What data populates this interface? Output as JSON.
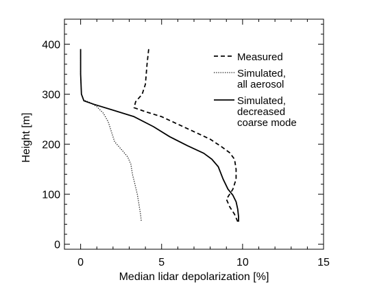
{
  "chart_data": {
    "type": "line",
    "xlabel": "Median lidar depolarization [%]",
    "ylabel": "Height [m]",
    "xlim": [
      -1,
      15
    ],
    "ylim": [
      -10,
      450
    ],
    "xticks": [
      0,
      5,
      10,
      15
    ],
    "yticks": [
      0,
      100,
      200,
      300,
      400
    ],
    "grid": false,
    "legend": {
      "placement": "top-right",
      "entries": [
        {
          "series": "measured",
          "lines": [
            "Measured"
          ]
        },
        {
          "series": "simulated_all",
          "lines": [
            "Simulated,",
            "all aerosol"
          ]
        },
        {
          "series": "simulated_decreased",
          "lines": [
            "Simulated,",
            "decreased",
            "coarse mode"
          ]
        }
      ]
    },
    "series": [
      {
        "key": "measured",
        "name": "Measured",
        "style": "dashed",
        "color": "#000000",
        "points": [
          [
            4.2,
            390
          ],
          [
            4.1,
            360
          ],
          [
            4.0,
            320
          ],
          [
            3.8,
            300
          ],
          [
            3.4,
            285
          ],
          [
            3.3,
            273
          ],
          [
            4.0,
            265
          ],
          [
            5.0,
            255
          ],
          [
            6.0,
            240
          ],
          [
            7.0,
            225
          ],
          [
            8.0,
            210
          ],
          [
            8.7,
            195
          ],
          [
            9.2,
            183
          ],
          [
            9.5,
            170
          ],
          [
            9.6,
            150
          ],
          [
            9.6,
            130
          ],
          [
            9.4,
            110
          ],
          [
            9.0,
            90
          ],
          [
            9.2,
            75
          ],
          [
            9.5,
            60
          ],
          [
            9.7,
            45
          ]
        ]
      },
      {
        "key": "simulated_all",
        "name": "Simulated, all aerosol",
        "style": "dotted",
        "color": "#000000",
        "points": [
          [
            0.0,
            390
          ],
          [
            0.0,
            340
          ],
          [
            0.05,
            300
          ],
          [
            0.2,
            288
          ],
          [
            0.6,
            283
          ],
          [
            1.0,
            275
          ],
          [
            1.4,
            262
          ],
          [
            1.7,
            245
          ],
          [
            1.9,
            225
          ],
          [
            2.1,
            205
          ],
          [
            2.5,
            190
          ],
          [
            2.9,
            175
          ],
          [
            3.1,
            160
          ],
          [
            3.2,
            140
          ],
          [
            3.35,
            120
          ],
          [
            3.5,
            100
          ],
          [
            3.6,
            80
          ],
          [
            3.7,
            60
          ],
          [
            3.75,
            45
          ]
        ]
      },
      {
        "key": "simulated_decreased",
        "name": "Simulated, decreased coarse mode",
        "style": "solid",
        "color": "#000000",
        "points": [
          [
            0.0,
            390
          ],
          [
            0.0,
            340
          ],
          [
            0.05,
            300
          ],
          [
            0.2,
            287
          ],
          [
            0.8,
            280
          ],
          [
            2.0,
            268
          ],
          [
            3.3,
            255
          ],
          [
            4.5,
            235
          ],
          [
            5.5,
            215
          ],
          [
            6.6,
            197
          ],
          [
            7.6,
            182
          ],
          [
            8.1,
            170
          ],
          [
            8.5,
            155
          ],
          [
            8.8,
            130
          ],
          [
            9.1,
            110
          ],
          [
            9.4,
            98
          ],
          [
            9.6,
            85
          ],
          [
            9.7,
            70
          ],
          [
            9.75,
            55
          ],
          [
            9.75,
            45
          ]
        ]
      }
    ]
  }
}
